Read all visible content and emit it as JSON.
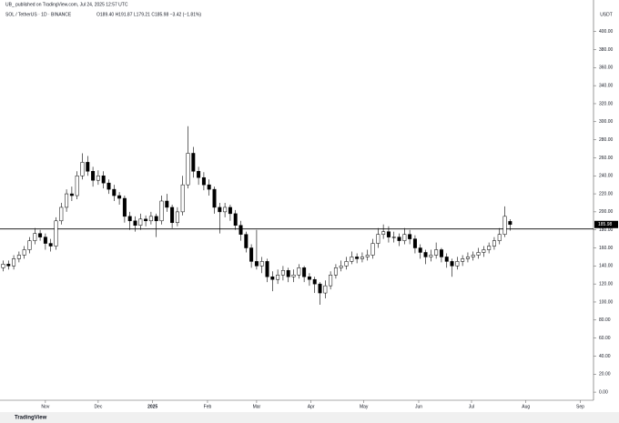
{
  "header": {
    "published": "UB_ published on TradingView.com, Jul 24, 2025 12:57 UTC",
    "symbol": "SOL / TetherUS · 1D · BINANCE",
    "ohlc": "O189.40 H191.87 L179.21 C185.98 −3.42 (−1.81%)"
  },
  "chart_data": {
    "type": "candlestick",
    "currency": "USDT",
    "open": [
      138,
      142,
      140,
      148,
      152,
      158,
      168,
      176,
      172,
      165,
      162,
      190,
      205,
      220,
      218,
      240,
      255,
      245,
      235,
      240,
      232,
      225,
      218,
      215,
      195,
      190,
      185,
      192,
      190,
      195,
      190,
      212,
      205,
      188,
      200,
      230,
      265,
      245,
      238,
      230,
      225,
      205,
      200,
      205,
      198,
      185,
      175,
      160,
      145,
      140,
      145,
      128,
      125,
      130,
      135,
      128,
      130,
      138,
      128,
      125,
      120,
      110,
      118,
      130,
      138,
      140,
      145,
      150,
      148,
      150,
      152,
      165,
      175,
      178,
      172,
      172,
      168,
      175,
      170,
      160,
      155,
      150,
      152,
      158,
      150,
      145,
      140,
      145,
      148,
      150,
      152,
      155,
      158,
      162,
      168,
      175,
      189.4
    ],
    "high": [
      146,
      146,
      152,
      156,
      162,
      172,
      182,
      180,
      176,
      170,
      194,
      210,
      225,
      228,
      245,
      265,
      262,
      250,
      246,
      245,
      236,
      230,
      222,
      218,
      200,
      195,
      198,
      196,
      200,
      198,
      218,
      220,
      208,
      205,
      240,
      295,
      272,
      250,
      244,
      236,
      228,
      210,
      210,
      208,
      202,
      190,
      178,
      164,
      180,
      150,
      148,
      134,
      136,
      140,
      138,
      136,
      142,
      140,
      132,
      128,
      122,
      124,
      134,
      142,
      146,
      150,
      156,
      154,
      155,
      158,
      170,
      182,
      186,
      184,
      178,
      176,
      182,
      180,
      174,
      164,
      158,
      158,
      166,
      160,
      154,
      148,
      150,
      152,
      155,
      156,
      160,
      162,
      166,
      172,
      182,
      206,
      191.87
    ],
    "low": [
      134,
      136,
      136,
      144,
      148,
      154,
      164,
      168,
      158,
      156,
      158,
      186,
      200,
      212,
      214,
      236,
      240,
      228,
      230,
      226,
      220,
      212,
      208,
      188,
      180,
      178,
      180,
      184,
      186,
      172,
      186,
      200,
      182,
      184,
      196,
      226,
      238,
      230,
      224,
      218,
      198,
      176,
      194,
      190,
      180,
      168,
      155,
      138,
      136,
      132,
      122,
      112,
      120,
      124,
      122,
      122,
      126,
      122,
      118,
      110,
      97,
      104,
      114,
      126,
      134,
      136,
      142,
      143,
      144,
      146,
      148,
      160,
      170,
      166,
      166,
      162,
      164,
      164,
      154,
      148,
      142,
      145,
      148,
      144,
      138,
      128,
      136,
      140,
      144,
      146,
      148,
      150,
      154,
      158,
      164,
      172,
      179.21
    ],
    "close": [
      142,
      140,
      148,
      152,
      158,
      168,
      176,
      172,
      165,
      162,
      190,
      205,
      220,
      218,
      240,
      255,
      245,
      235,
      240,
      232,
      225,
      218,
      215,
      195,
      190,
      185,
      192,
      190,
      195,
      190,
      212,
      205,
      188,
      200,
      230,
      265,
      245,
      238,
      230,
      225,
      205,
      200,
      205,
      198,
      185,
      175,
      160,
      145,
      140,
      145,
      128,
      125,
      130,
      135,
      128,
      130,
      138,
      128,
      125,
      120,
      110,
      118,
      130,
      138,
      140,
      145,
      150,
      148,
      150,
      152,
      165,
      175,
      178,
      172,
      172,
      168,
      175,
      170,
      160,
      155,
      150,
      152,
      158,
      150,
      145,
      140,
      145,
      148,
      150,
      152,
      155,
      158,
      162,
      168,
      175,
      195,
      185.98
    ],
    "ylim": [
      -9,
      435
    ],
    "yticks": [
      {
        "value": 0,
        "label": "0.00"
      },
      {
        "value": 20,
        "label": "20.00"
      },
      {
        "value": 40,
        "label": "40.00"
      },
      {
        "value": 60,
        "label": "60.00"
      },
      {
        "value": 80,
        "label": "80.00"
      },
      {
        "value": 100,
        "label": "100.00"
      },
      {
        "value": 120,
        "label": "120.00"
      },
      {
        "value": 140,
        "label": "140.00"
      },
      {
        "value": 160,
        "label": "160.00"
      },
      {
        "value": 180,
        "label": "180.00"
      },
      {
        "value": 200,
        "label": "200.00"
      },
      {
        "value": 220,
        "label": "220.00"
      },
      {
        "value": 240,
        "label": "240.00"
      },
      {
        "value": 260,
        "label": "260.00"
      },
      {
        "value": 280,
        "label": "280.00"
      },
      {
        "value": 300,
        "label": "300.00"
      },
      {
        "value": 320,
        "label": "320.00"
      },
      {
        "value": 340,
        "label": "340.00"
      },
      {
        "value": 360,
        "label": "360.00"
      },
      {
        "value": 380,
        "label": "380.00"
      },
      {
        "value": 400,
        "label": "400.00"
      }
    ],
    "xlim": [
      -0.6,
      111.8
    ],
    "xticks": [
      {
        "value": 8,
        "label": "Nov"
      },
      {
        "value": 18,
        "label": "Dec"
      },
      {
        "value": 28.3,
        "label": "2025"
      },
      {
        "value": 38.7,
        "label": "Feb"
      },
      {
        "value": 48,
        "label": "Mar"
      },
      {
        "value": 58.3,
        "label": "Apr"
      },
      {
        "value": 68.3,
        "label": "May"
      },
      {
        "value": 78.7,
        "label": "Jun"
      },
      {
        "value": 88.7,
        "label": "Jul"
      },
      {
        "value": 99,
        "label": "Aug"
      },
      {
        "value": 109.3,
        "label": "Sep"
      }
    ],
    "hline": 181,
    "last_price": 185.98,
    "up_color": "#ffffff",
    "down_color": "#000000"
  },
  "footer": "TradingView"
}
